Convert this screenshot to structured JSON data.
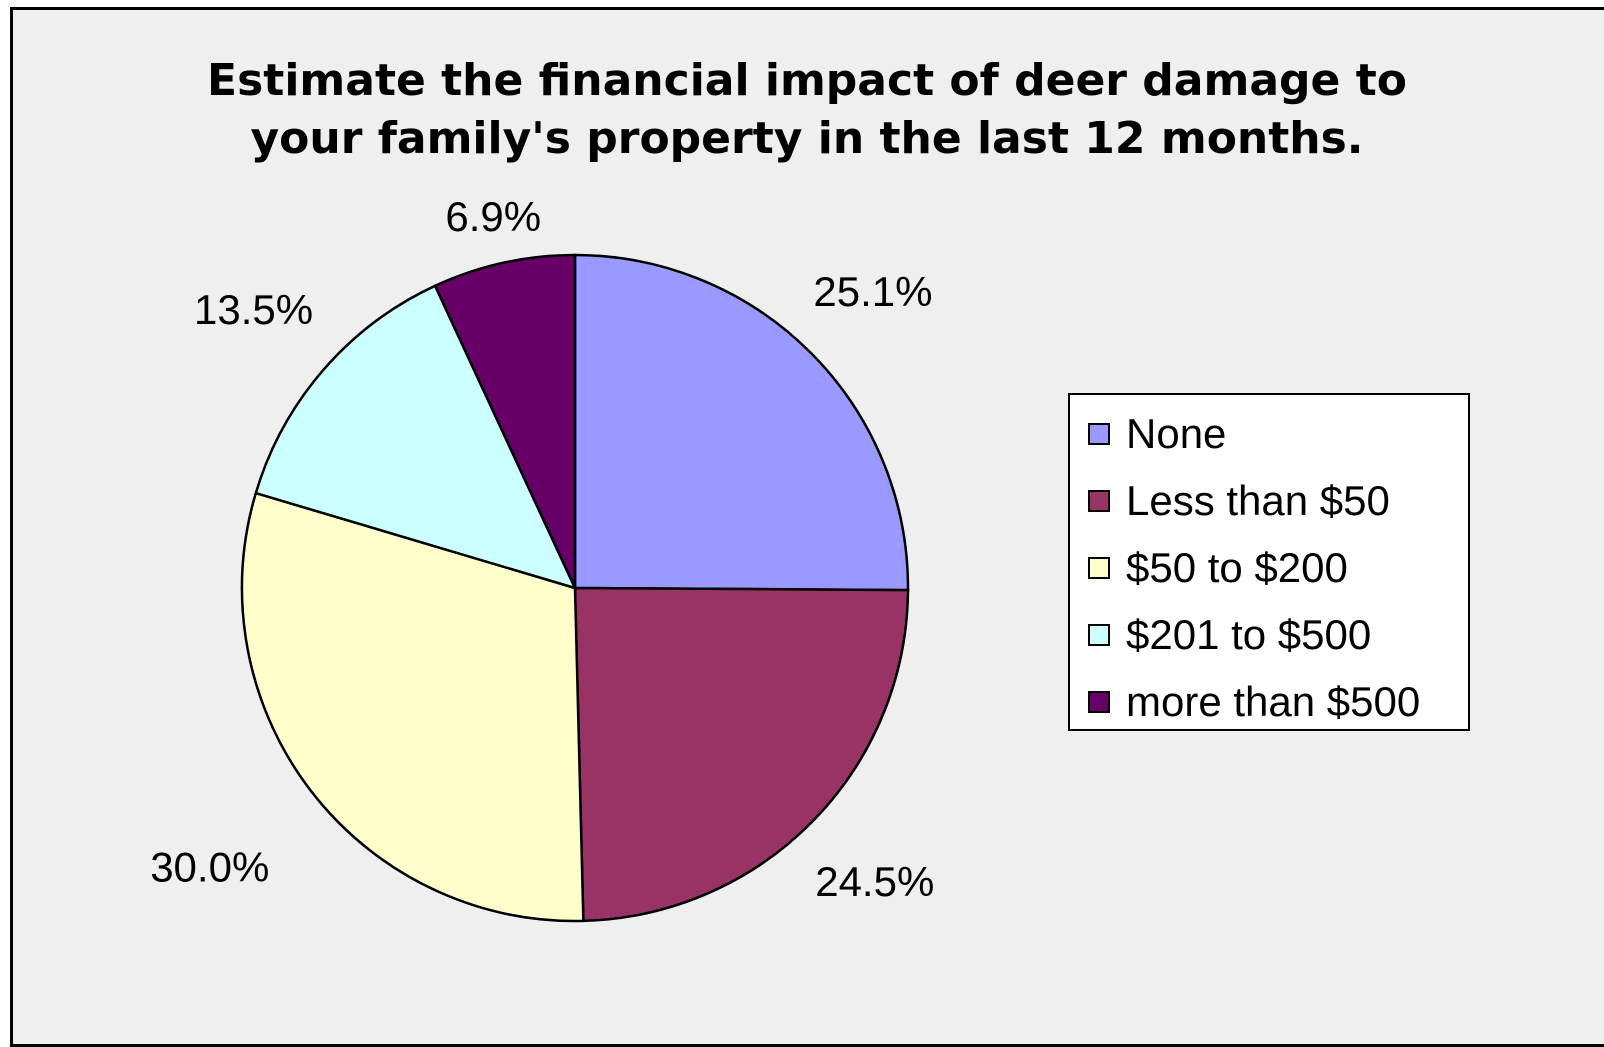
{
  "chart_data": {
    "type": "pie",
    "title": "Estimate the financial impact of deer damage to your family's property in the last 12 months.",
    "title_lines": [
      "Estimate the financial impact of deer damage to",
      "your family's property in the last 12 months."
    ],
    "categories": [
      "None",
      "Less than $50",
      "$50 to $200",
      "$201 to $500",
      "more than $500"
    ],
    "values": [
      25.1,
      24.5,
      30.0,
      13.5,
      6.9
    ],
    "labels": [
      "25.1%",
      "24.5%",
      "30.0%",
      "13.5%",
      "6.9%"
    ],
    "colors": [
      "#9999ff",
      "#993366",
      "#ffffcc",
      "#ccffff",
      "#660066"
    ],
    "legend_position": "right",
    "start": "12 o'clock",
    "direction": "clockwise"
  }
}
